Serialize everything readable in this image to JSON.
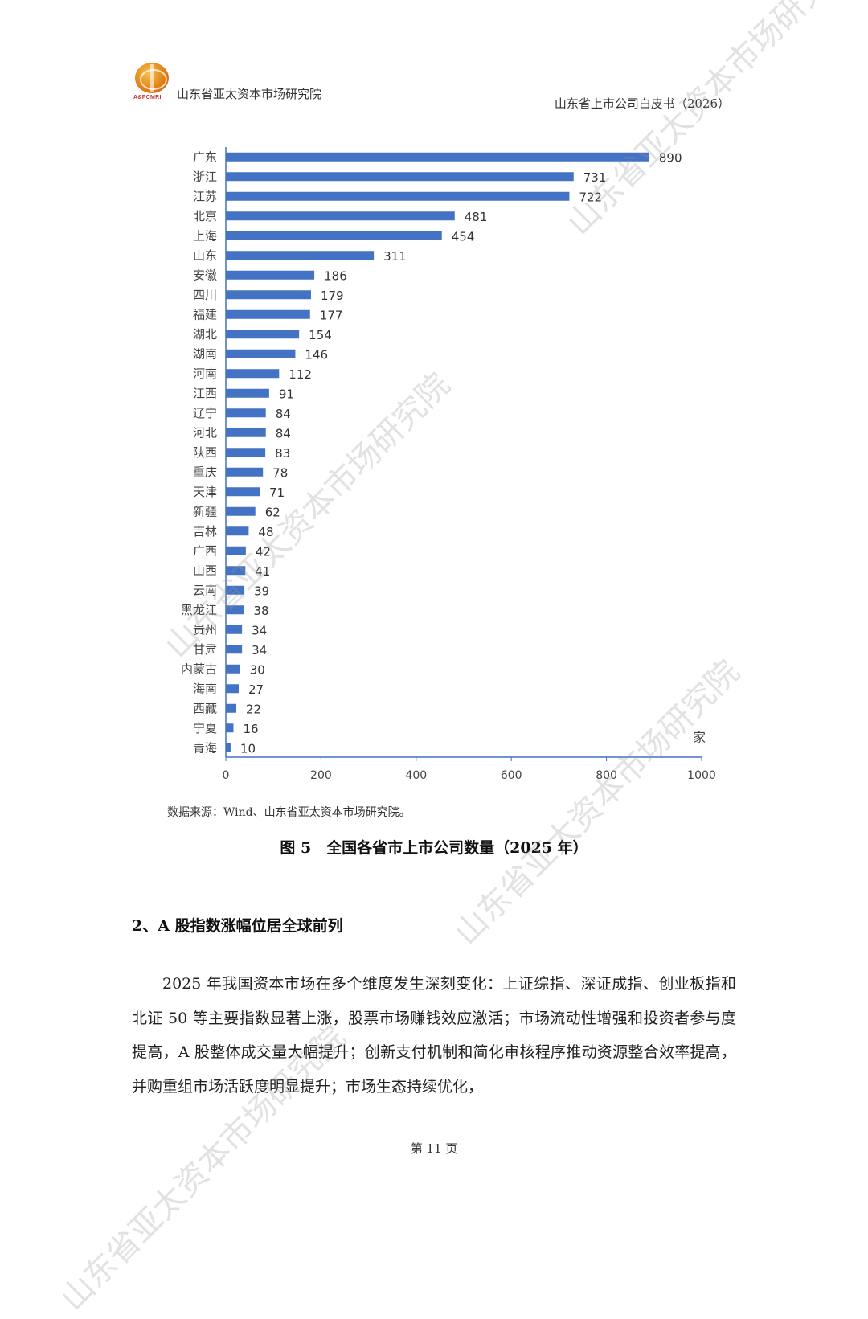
{
  "header": {
    "logo_text": "A&PCMRI",
    "org_name": "山东省亚太资本市场研究院",
    "doc_title": "山东省上市公司白皮书（2026）"
  },
  "chart_data": {
    "type": "bar",
    "orientation": "horizontal",
    "categories": [
      "广东",
      "浙江",
      "江苏",
      "北京",
      "上海",
      "山东",
      "安徽",
      "四川",
      "福建",
      "湖北",
      "湖南",
      "河南",
      "江西",
      "辽宁",
      "河北",
      "陕西",
      "重庆",
      "天津",
      "新疆",
      "吉林",
      "广西",
      "山西",
      "云南",
      "黑龙江",
      "贵州",
      "甘肃",
      "内蒙古",
      "海南",
      "西藏",
      "宁夏",
      "青海"
    ],
    "values": [
      890,
      731,
      722,
      481,
      454,
      311,
      186,
      179,
      177,
      154,
      146,
      112,
      91,
      84,
      84,
      83,
      78,
      71,
      62,
      48,
      42,
      41,
      39,
      38,
      34,
      34,
      30,
      27,
      22,
      16,
      10
    ],
    "xlim": [
      0,
      1000
    ],
    "xticks": [
      0,
      200,
      400,
      600,
      800,
      1000
    ],
    "unit_label": "家",
    "bar_color": "#4472c4",
    "axis_color": "#4472c4",
    "grid": false,
    "legend": "none"
  },
  "source": "数据来源：Wind、山东省亚太资本市场研究院。",
  "figure_title": "图 5　全国各省市上市公司数量（2025 年）",
  "section_title": "2、A 股指数涨幅位居全球前列",
  "paragraph": "2025 年我国资本市场在多个维度发生深刻变化：上证综指、深证成指、创业板指和北证 50 等主要指数显著上涨，股票市场赚钱效应激活；市场流动性增强和投资者参与度提高，A 股整体成交量大幅提升；创新支付机制和简化审核程序推动资源整合效率提高，并购重组市场活跃度明显提升；市场生态持续优化，",
  "page_number": "第 11 页",
  "watermark": "山东省亚太资本市场研究院"
}
